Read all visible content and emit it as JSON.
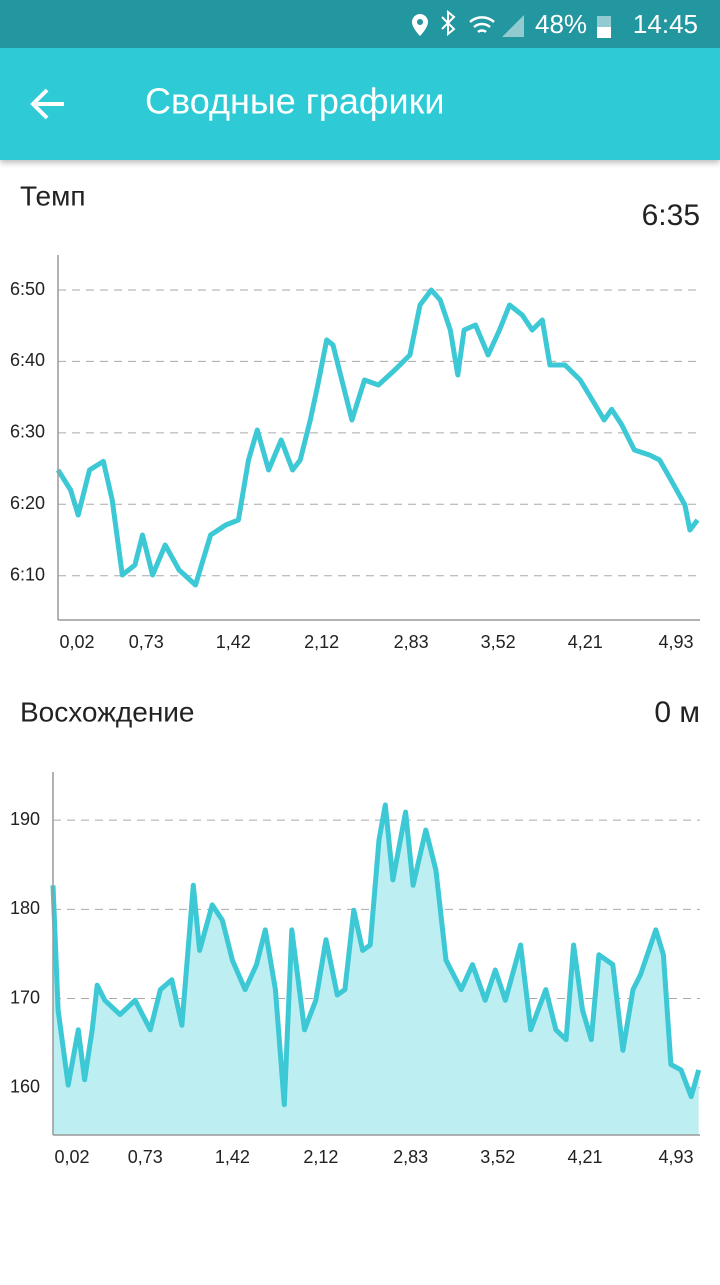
{
  "status_bar": {
    "battery": "48%",
    "time": "14:45"
  },
  "app_bar": {
    "title": "Сводные графики"
  },
  "chart_data": [
    {
      "type": "line",
      "title": "Темп",
      "summary": "6:35",
      "color": "#3cc8d4",
      "grid": true,
      "x": [
        0.03,
        0.13,
        0.19,
        0.28,
        0.39,
        0.46,
        0.54,
        0.64,
        0.7,
        0.78,
        0.88,
        0.99,
        1.12,
        1.24,
        1.36,
        1.46,
        1.54,
        1.61,
        1.7,
        1.8,
        1.89,
        1.95,
        2.03,
        2.09,
        2.16,
        2.21,
        2.31,
        2.36,
        2.46,
        2.57,
        2.7,
        2.82,
        2.9,
        2.99,
        3.06,
        3.14,
        3.2,
        3.25,
        3.34,
        3.44,
        3.53,
        3.61,
        3.71,
        3.79,
        3.87,
        3.93,
        4.05,
        4.17,
        4.29,
        4.36,
        4.42,
        4.5,
        4.6,
        4.72,
        4.8,
        4.89,
        5.0,
        5.04,
        5.1
      ],
      "values": [
        384.8,
        382,
        378.5,
        384.8,
        386,
        380.6,
        370.1,
        371.5,
        375.7,
        370.1,
        374.3,
        370.8,
        368.7,
        375.7,
        377.1,
        377.8,
        386.2,
        390.4,
        384.8,
        389,
        384.8,
        386.2,
        391.8,
        396.7,
        403,
        402.3,
        395.3,
        391.8,
        397.4,
        396.7,
        398.8,
        400.9,
        407.9,
        410,
        408.6,
        404.4,
        398.1,
        404.4,
        405.1,
        400.9,
        404.4,
        407.9,
        406.5,
        404.4,
        405.8,
        399.5,
        399.5,
        397.4,
        393.9,
        391.8,
        393.3,
        391.1,
        387.6,
        386.9,
        386.2,
        383.4,
        379.9,
        376.4,
        377.8
      ],
      "xlim": [
        0.03,
        5.12
      ],
      "xticks": [
        {
          "value": 0.02,
          "label": "0,02"
        },
        {
          "value": 0.73,
          "label": "0,73"
        },
        {
          "value": 1.42,
          "label": "1,42"
        },
        {
          "value": 2.12,
          "label": "2,12"
        },
        {
          "value": 2.83,
          "label": "2,83"
        },
        {
          "value": 3.52,
          "label": "3,52"
        },
        {
          "value": 4.21,
          "label": "4,21"
        },
        {
          "value": 4.93,
          "label": "4,93"
        }
      ],
      "ylim": [
        363.8,
        414.9
      ],
      "yticks": [
        {
          "value": 370,
          "label": "6:10"
        },
        {
          "value": 380,
          "label": "6:20"
        },
        {
          "value": 390,
          "label": "6:30"
        },
        {
          "value": 400,
          "label": "6:40"
        },
        {
          "value": 410,
          "label": "6:50"
        }
      ]
    },
    {
      "type": "area",
      "title": "Восхождение",
      "summary": "0 м",
      "color": "#3cc8d4",
      "fill": "#bdeef2",
      "grid": true,
      "x": [
        0,
        0.04,
        0.12,
        0.2,
        0.25,
        0.31,
        0.35,
        0.41,
        0.53,
        0.65,
        0.77,
        0.85,
        0.94,
        1.02,
        1.11,
        1.16,
        1.26,
        1.34,
        1.42,
        1.52,
        1.61,
        1.68,
        1.76,
        1.83,
        1.89,
        1.99,
        2.08,
        2.16,
        2.25,
        2.31,
        2.38,
        2.45,
        2.51,
        2.58,
        2.63,
        2.69,
        2.79,
        2.85,
        2.95,
        3.03,
        3.11,
        3.23,
        3.32,
        3.42,
        3.5,
        3.58,
        3.7,
        3.78,
        3.9,
        3.98,
        4.06,
        4.12,
        4.19,
        4.26,
        4.32,
        4.43,
        4.51,
        4.59,
        4.65,
        4.77,
        4.83,
        4.89,
        4.97,
        5.05,
        5.11
      ],
      "values": [
        182.7,
        168.7,
        160.3,
        166.5,
        160.9,
        166.5,
        171.5,
        169.8,
        168.2,
        169.8,
        166.5,
        171,
        172.1,
        167,
        182.7,
        175.4,
        180.5,
        178.8,
        174.3,
        171,
        173.8,
        177.7,
        171,
        158.1,
        177.7,
        166.5,
        169.8,
        176.6,
        170.4,
        171,
        179.9,
        175.4,
        176,
        187.8,
        191.7,
        183.3,
        190.9,
        182.7,
        188.9,
        184.4,
        174.3,
        171,
        173.8,
        169.8,
        173.2,
        169.8,
        176,
        166.5,
        171,
        166.5,
        165.4,
        176,
        168.7,
        165.4,
        174.9,
        173.8,
        164.2,
        171,
        172.7,
        177.7,
        174.9,
        162.6,
        162,
        159,
        162
      ],
      "xlim": [
        0,
        5.12
      ],
      "xticks": [
        {
          "value": 0.02,
          "label": "0,02"
        },
        {
          "value": 0.73,
          "label": "0,73"
        },
        {
          "value": 1.42,
          "label": "1,42"
        },
        {
          "value": 2.12,
          "label": "2,12"
        },
        {
          "value": 2.83,
          "label": "2,83"
        },
        {
          "value": 3.52,
          "label": "3,52"
        },
        {
          "value": 4.21,
          "label": "4,21"
        },
        {
          "value": 4.93,
          "label": "4,93"
        }
      ],
      "ylim": [
        154.7,
        195.4
      ],
      "yticks": [
        160,
        170,
        180,
        190
      ]
    }
  ]
}
